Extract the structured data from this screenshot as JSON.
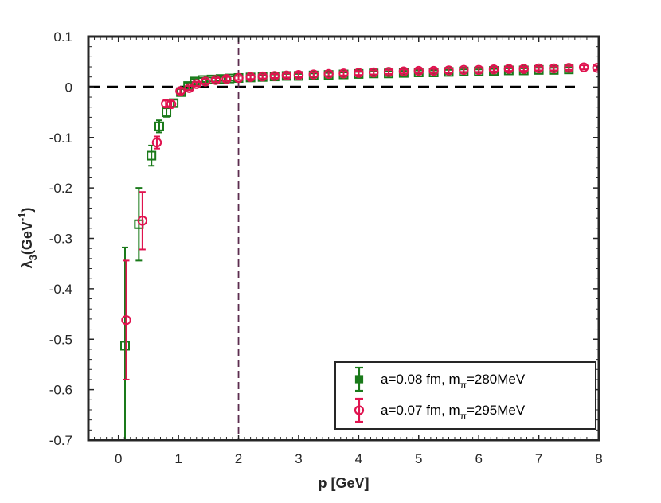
{
  "chart_data": {
    "type": "scatter",
    "xlabel": "p [GeV]",
    "ylabel_main": "λ",
    "ylabel_sub": "3",
    "ylabel_unit": "(GeV",
    "ylabel_sup": "-1",
    "ylabel_close": ")",
    "xlim": [
      -0.5,
      8
    ],
    "ylim": [
      -0.7,
      0.1
    ],
    "xticks": [
      0,
      1,
      2,
      3,
      4,
      5,
      6,
      7,
      8
    ],
    "xtick_labels": [
      "0",
      "1",
      "2",
      "3",
      "4",
      "5",
      "6",
      "7",
      "8"
    ],
    "yticks": [
      0.1,
      0,
      -0.1,
      -0.2,
      -0.3,
      -0.4,
      -0.5,
      -0.6,
      -0.7
    ],
    "ytick_labels": [
      "0.1",
      "0",
      "-0.1",
      "-0.2",
      "-0.3",
      "-0.4",
      "-0.5",
      "-0.6",
      "-0.7"
    ],
    "reference_lines": [
      {
        "orientation": "horizontal",
        "value": 0,
        "style": "dashed",
        "color": "#000000"
      },
      {
        "orientation": "vertical",
        "value": 2,
        "style": "dashed",
        "color": "#5c2d4f"
      }
    ],
    "legend_position": "bottom-right",
    "series": [
      {
        "name": "a=0.08 fm, m",
        "name_sub": "π",
        "name_suffix": "=280MeV",
        "color": "#1a7a1a",
        "marker": "square",
        "points": [
          {
            "x": 0.11,
            "y": -0.513,
            "err": 0.195
          },
          {
            "x": 0.34,
            "y": -0.272,
            "err": 0.072
          },
          {
            "x": 0.55,
            "y": -0.136,
            "err": 0.02
          },
          {
            "x": 0.68,
            "y": -0.078,
            "err": 0.012
          },
          {
            "x": 0.8,
            "y": -0.05,
            "err": 0.009
          },
          {
            "x": 0.92,
            "y": -0.032,
            "err": 0.007
          },
          {
            "x": 1.04,
            "y": -0.01,
            "err": 0.006
          },
          {
            "x": 1.16,
            "y": 0.002,
            "err": 0.005
          },
          {
            "x": 1.27,
            "y": 0.011,
            "err": 0.005
          },
          {
            "x": 1.4,
            "y": 0.014,
            "err": 0.004
          },
          {
            "x": 1.55,
            "y": 0.015,
            "err": 0.004
          },
          {
            "x": 1.7,
            "y": 0.016,
            "err": 0.004
          },
          {
            "x": 1.85,
            "y": 0.017,
            "err": 0.004
          },
          {
            "x": 2.0,
            "y": 0.018,
            "err": 0.004
          },
          {
            "x": 2.2,
            "y": 0.019,
            "err": 0.004
          },
          {
            "x": 2.4,
            "y": 0.02,
            "err": 0.004
          },
          {
            "x": 2.6,
            "y": 0.021,
            "err": 0.004
          },
          {
            "x": 2.8,
            "y": 0.022,
            "err": 0.004
          },
          {
            "x": 3.0,
            "y": 0.022,
            "err": 0.004
          },
          {
            "x": 3.25,
            "y": 0.023,
            "err": 0.004
          },
          {
            "x": 3.5,
            "y": 0.024,
            "err": 0.004
          },
          {
            "x": 3.75,
            "y": 0.025,
            "err": 0.004
          },
          {
            "x": 4.0,
            "y": 0.026,
            "err": 0.004
          },
          {
            "x": 4.25,
            "y": 0.027,
            "err": 0.004
          },
          {
            "x": 4.5,
            "y": 0.027,
            "err": 0.004
          },
          {
            "x": 4.75,
            "y": 0.028,
            "err": 0.004
          },
          {
            "x": 5.0,
            "y": 0.029,
            "err": 0.004
          },
          {
            "x": 5.25,
            "y": 0.029,
            "err": 0.004
          },
          {
            "x": 5.5,
            "y": 0.03,
            "err": 0.004
          },
          {
            "x": 5.75,
            "y": 0.031,
            "err": 0.004
          },
          {
            "x": 6.0,
            "y": 0.031,
            "err": 0.004
          },
          {
            "x": 6.25,
            "y": 0.032,
            "err": 0.004
          },
          {
            "x": 6.5,
            "y": 0.033,
            "err": 0.004
          },
          {
            "x": 6.75,
            "y": 0.033,
            "err": 0.004
          },
          {
            "x": 7.0,
            "y": 0.034,
            "err": 0.004
          },
          {
            "x": 7.25,
            "y": 0.034,
            "err": 0.004
          },
          {
            "x": 7.5,
            "y": 0.035,
            "err": 0.004
          }
        ]
      },
      {
        "name": "a=0.07 fm, m",
        "name_sub": "π",
        "name_suffix": "=295MeV",
        "color": "#e0134f",
        "marker": "circle",
        "points": [
          {
            "x": 0.13,
            "y": -0.462,
            "err": 0.118
          },
          {
            "x": 0.4,
            "y": -0.265,
            "err": 0.057
          },
          {
            "x": 0.64,
            "y": -0.11,
            "err": 0.012
          },
          {
            "x": 0.79,
            "y": -0.033,
            "err": 0.006
          },
          {
            "x": 0.88,
            "y": -0.034,
            "err": 0.006
          },
          {
            "x": 1.03,
            "y": -0.008,
            "err": 0.005
          },
          {
            "x": 1.18,
            "y": -0.002,
            "err": 0.004
          },
          {
            "x": 1.3,
            "y": 0.006,
            "err": 0.004
          },
          {
            "x": 1.45,
            "y": 0.011,
            "err": 0.004
          },
          {
            "x": 1.62,
            "y": 0.014,
            "err": 0.004
          },
          {
            "x": 1.8,
            "y": 0.016,
            "err": 0.004
          },
          {
            "x": 2.0,
            "y": 0.018,
            "err": 0.004
          },
          {
            "x": 2.2,
            "y": 0.02,
            "err": 0.004
          },
          {
            "x": 2.4,
            "y": 0.021,
            "err": 0.004
          },
          {
            "x": 2.6,
            "y": 0.022,
            "err": 0.004
          },
          {
            "x": 2.8,
            "y": 0.023,
            "err": 0.004
          },
          {
            "x": 3.0,
            "y": 0.024,
            "err": 0.004
          },
          {
            "x": 3.25,
            "y": 0.025,
            "err": 0.004
          },
          {
            "x": 3.5,
            "y": 0.026,
            "err": 0.004
          },
          {
            "x": 3.75,
            "y": 0.027,
            "err": 0.004
          },
          {
            "x": 4.0,
            "y": 0.028,
            "err": 0.004
          },
          {
            "x": 4.25,
            "y": 0.029,
            "err": 0.004
          },
          {
            "x": 4.5,
            "y": 0.03,
            "err": 0.004
          },
          {
            "x": 4.75,
            "y": 0.031,
            "err": 0.004
          },
          {
            "x": 5.0,
            "y": 0.032,
            "err": 0.004
          },
          {
            "x": 5.25,
            "y": 0.032,
            "err": 0.004
          },
          {
            "x": 5.5,
            "y": 0.033,
            "err": 0.004
          },
          {
            "x": 5.75,
            "y": 0.034,
            "err": 0.004
          },
          {
            "x": 6.0,
            "y": 0.034,
            "err": 0.004
          },
          {
            "x": 6.25,
            "y": 0.035,
            "err": 0.004
          },
          {
            "x": 6.5,
            "y": 0.036,
            "err": 0.004
          },
          {
            "x": 6.75,
            "y": 0.036,
            "err": 0.004
          },
          {
            "x": 7.0,
            "y": 0.037,
            "err": 0.004
          },
          {
            "x": 7.25,
            "y": 0.037,
            "err": 0.004
          },
          {
            "x": 7.5,
            "y": 0.038,
            "err": 0.004
          },
          {
            "x": 7.75,
            "y": 0.039,
            "err": 0.004
          },
          {
            "x": 7.97,
            "y": 0.038,
            "err": 0.004
          }
        ]
      }
    ]
  }
}
